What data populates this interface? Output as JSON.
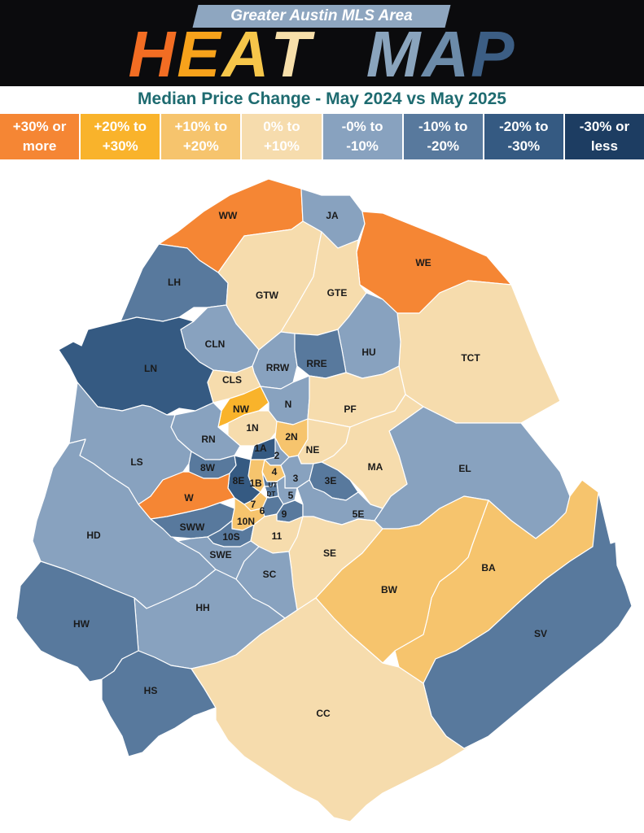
{
  "header": {
    "subtitle": "Greater Austin MLS Area",
    "title_word1": "HEAT",
    "title_word2": "MAP"
  },
  "chart_title": "Median Price Change - May 2024 vs May 2025",
  "legend": [
    {
      "line1": "+30% or",
      "line2": "more",
      "color": "#f58634"
    },
    {
      "line1": "+20% to",
      "line2": "+30%",
      "color": "#f9b32b"
    },
    {
      "line1": "+10% to",
      "line2": "+20%",
      "color": "#f6c46d"
    },
    {
      "line1": "0% to",
      "line2": "+10%",
      "color": "#f6dcad"
    },
    {
      "line1": "-0% to",
      "line2": "-10%",
      "color": "#88a2bf"
    },
    {
      "line1": "-10% to",
      "line2": "-20%",
      "color": "#58799d"
    },
    {
      "line1": "-20% to",
      "line2": "-30%",
      "color": "#355a82"
    },
    {
      "line1": "-30% or",
      "line2": "less",
      "color": "#1d3d62"
    }
  ],
  "areas": [
    {
      "code": "WW",
      "category": 0
    },
    {
      "code": "JA",
      "category": 4
    },
    {
      "code": "WE",
      "category": 0
    },
    {
      "code": "LH",
      "category": 5
    },
    {
      "code": "GTW",
      "category": 3
    },
    {
      "code": "GTE",
      "category": 3
    },
    {
      "code": "TCT",
      "category": 3
    },
    {
      "code": "CLN",
      "category": 4
    },
    {
      "code": "HU",
      "category": 4
    },
    {
      "code": "RRW",
      "category": 4
    },
    {
      "code": "RRE",
      "category": 5
    },
    {
      "code": "LN",
      "category": 6
    },
    {
      "code": "CLS",
      "category": 3
    },
    {
      "code": "NW",
      "category": 1
    },
    {
      "code": "N",
      "category": 4
    },
    {
      "code": "PF",
      "category": 3
    },
    {
      "code": "1N",
      "category": 3
    },
    {
      "code": "2N",
      "category": 2
    },
    {
      "code": "RN",
      "category": 4
    },
    {
      "code": "NE",
      "category": 3
    },
    {
      "code": "1A",
      "category": 6
    },
    {
      "code": "2",
      "category": 4
    },
    {
      "code": "EL",
      "category": 4
    },
    {
      "code": "LS",
      "category": 4
    },
    {
      "code": "MA",
      "category": 3
    },
    {
      "code": "8W",
      "category": 5
    },
    {
      "code": "4",
      "category": 2
    },
    {
      "code": "3",
      "category": 4
    },
    {
      "code": "3E",
      "category": 5
    },
    {
      "code": "8E",
      "category": 6
    },
    {
      "code": "1B",
      "category": 2
    },
    {
      "code": "UT",
      "category": 5
    },
    {
      "code": "DT",
      "category": 5
    },
    {
      "code": "5",
      "category": 4
    },
    {
      "code": "W",
      "category": 0
    },
    {
      "code": "7",
      "category": 2
    },
    {
      "code": "6",
      "category": 5
    },
    {
      "code": "9",
      "category": 5
    },
    {
      "code": "5E",
      "category": 4
    },
    {
      "code": "HD",
      "category": 4
    },
    {
      "code": "SWW",
      "category": 5
    },
    {
      "code": "10N",
      "category": 2
    },
    {
      "code": "10S",
      "category": 5
    },
    {
      "code": "11",
      "category": 3
    },
    {
      "code": "SE",
      "category": 3
    },
    {
      "code": "SWE",
      "category": 4
    },
    {
      "code": "BA",
      "category": 2
    },
    {
      "code": "BW",
      "category": 2
    },
    {
      "code": "SC",
      "category": 4
    },
    {
      "code": "HH",
      "category": 4
    },
    {
      "code": "HW",
      "category": 5
    },
    {
      "code": "SV",
      "category": 5
    },
    {
      "code": "HS",
      "category": 5
    },
    {
      "code": "CC",
      "category": 3
    }
  ]
}
